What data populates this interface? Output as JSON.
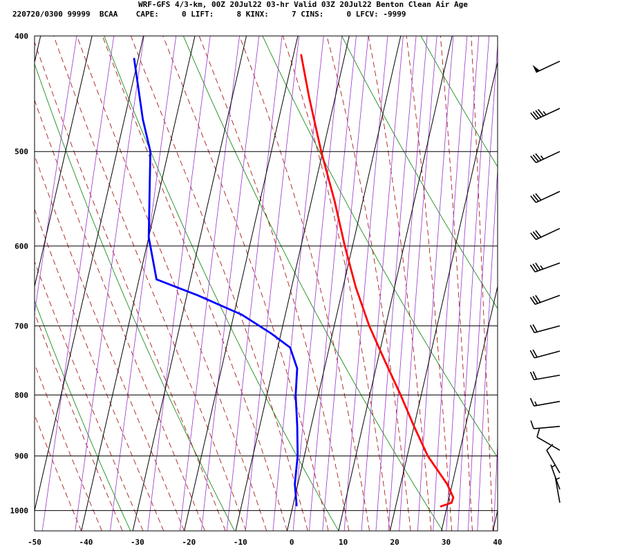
{
  "header": {
    "line1": "WRF-GFS 4/3-km, 00Z 20Jul22 03-hr Valid 03Z 20Jul22 Benton Clean Air Age",
    "line2": "220720/0300 99999  BCAA    CAPE:     0 LIFT:     8 KINX:     7 CINS:     0 LFCV: -9999"
  },
  "chart_data": {
    "type": "line",
    "chart_kind": "skew-T log-P sounding",
    "x_ticks": [
      -50,
      -40,
      -30,
      -20,
      -10,
      0,
      10,
      20,
      30,
      40
    ],
    "y_ticks": [
      400,
      500,
      600,
      700,
      800,
      900,
      1000
    ],
    "xlim": [
      -50,
      40
    ],
    "ylim": [
      400,
      1040
    ],
    "y_scale": "log",
    "grid": true,
    "series": [
      {
        "color": "#ff0000",
        "quantity": "temperature",
        "points": [
          {
            "p": 415,
            "t": -18.5
          },
          {
            "p": 450,
            "t": -15.1
          },
          {
            "p": 500,
            "t": -10.3
          },
          {
            "p": 550,
            "t": -5.5
          },
          {
            "p": 600,
            "t": -1.5
          },
          {
            "p": 650,
            "t": 2.5
          },
          {
            "p": 700,
            "t": 6.8
          },
          {
            "p": 750,
            "t": 11.5
          },
          {
            "p": 800,
            "t": 16.0
          },
          {
            "p": 850,
            "t": 20.0
          },
          {
            "p": 900,
            "t": 24.0
          },
          {
            "p": 950,
            "t": 29.0
          },
          {
            "p": 975,
            "t": 30.8
          },
          {
            "p": 985,
            "t": 30.7
          },
          {
            "p": 992,
            "t": 28.8
          }
        ]
      },
      {
        "color": "#0000ff",
        "quantity": "dewpoint",
        "points": [
          {
            "p": 418,
            "t": -50.8
          },
          {
            "p": 470,
            "t": -46.4
          },
          {
            "p": 500,
            "t": -43.5
          },
          {
            "p": 590,
            "t": -40.0
          },
          {
            "p": 640,
            "t": -36.6
          },
          {
            "p": 660,
            "t": -27.9
          },
          {
            "p": 685,
            "t": -18.5
          },
          {
            "p": 710,
            "t": -12.0
          },
          {
            "p": 730,
            "t": -7.6
          },
          {
            "p": 760,
            "t": -5.3
          },
          {
            "p": 800,
            "t": -4.4
          },
          {
            "p": 850,
            "t": -2.7
          },
          {
            "p": 900,
            "t": -1.3
          },
          {
            "p": 950,
            "t": -0.6
          },
          {
            "p": 990,
            "t": 0.7
          }
        ]
      }
    ]
  },
  "wind_barbs": [
    {
      "p": 420,
      "dir": 245,
      "speed": 50
    },
    {
      "p": 460,
      "dir": 245,
      "speed": 45
    },
    {
      "p": 500,
      "dir": 245,
      "speed": 35
    },
    {
      "p": 540,
      "dir": 245,
      "speed": 30
    },
    {
      "p": 580,
      "dir": 245,
      "speed": 30
    },
    {
      "p": 620,
      "dir": 250,
      "speed": 35
    },
    {
      "p": 660,
      "dir": 250,
      "speed": 30
    },
    {
      "p": 700,
      "dir": 255,
      "speed": 20
    },
    {
      "p": 735,
      "dir": 255,
      "speed": 20
    },
    {
      "p": 770,
      "dir": 260,
      "speed": 20
    },
    {
      "p": 810,
      "dir": 260,
      "speed": 15
    },
    {
      "p": 850,
      "dir": 265,
      "speed": 10
    },
    {
      "p": 890,
      "dir": 300,
      "speed": 10
    },
    {
      "p": 930,
      "dir": 330,
      "speed": 10
    },
    {
      "p": 960,
      "dir": 340,
      "speed": 5
    },
    {
      "p": 985,
      "dir": 350,
      "speed": 5
    }
  ],
  "colors": {
    "temperature": "#ff0000",
    "dewpoint": "#0000ff",
    "dry_adiabat": "#008000",
    "moist_adiabat": "#a00000",
    "mixing_ratio": "#9933cc",
    "grid": "#000000"
  }
}
